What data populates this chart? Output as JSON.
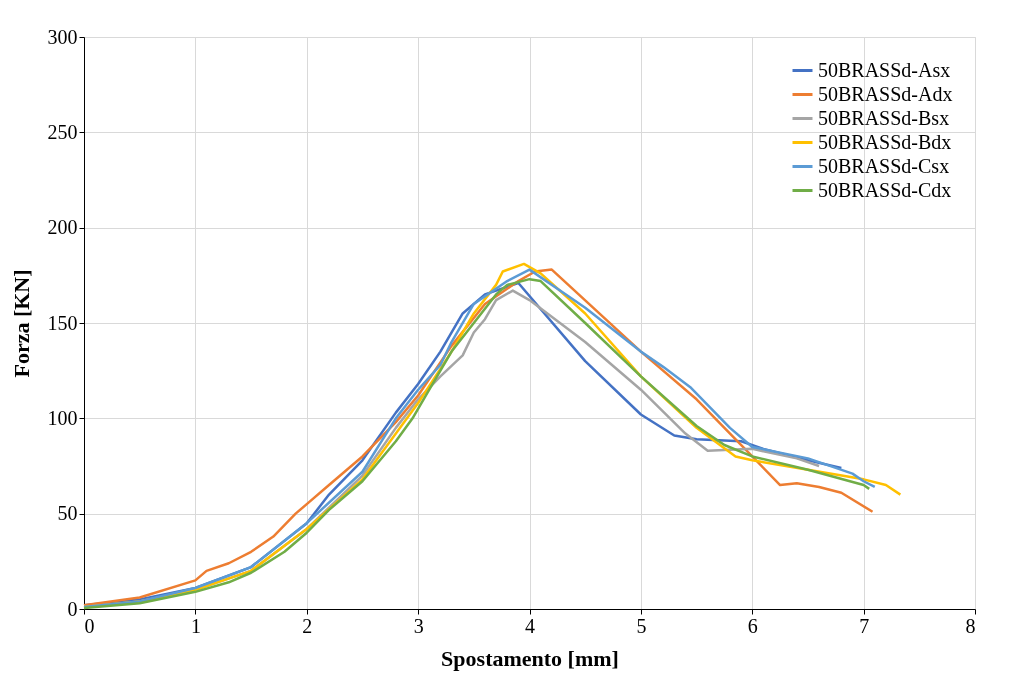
{
  "chart_data": {
    "type": "line",
    "xlabel": "Spostamento  [mm]",
    "ylabel": "Forza  [KN]",
    "xlim": [
      0,
      8
    ],
    "xticks": [
      0,
      1,
      2,
      3,
      4,
      5,
      6,
      7,
      8
    ],
    "ylim": [
      0,
      300
    ],
    "yticks": [
      0,
      50,
      100,
      150,
      200,
      250,
      300
    ],
    "grid": true,
    "legend": "top right",
    "marker": "none",
    "line_style": "solid",
    "series": [
      {
        "name": "50BRASSd-Asx",
        "color": "#4472c4",
        "x": [
          0,
          0.5,
          1,
          1.5,
          2,
          2.2,
          2.5,
          2.8,
          3,
          3.2,
          3.4,
          3.6,
          3.9,
          4.5,
          5,
          5.3,
          5.5,
          5.9,
          6.1,
          6.5,
          6.8
        ],
        "values": [
          2,
          5,
          11,
          22,
          45,
          60,
          78,
          103,
          118,
          135,
          155,
          165,
          171,
          130,
          102,
          91,
          89,
          88,
          84,
          78,
          74
        ]
      },
      {
        "name": "50BRASSd-Adx",
        "color": "#ed7d31",
        "x": [
          0,
          0.5,
          1,
          1.1,
          1.3,
          1.5,
          1.7,
          1.9,
          2,
          2.2,
          2.5,
          2.8,
          3,
          3.3,
          3.6,
          3.9,
          4.05,
          4.2,
          5,
          5.5,
          6,
          6.25,
          6.4,
          6.6,
          6.8,
          7.08
        ],
        "values": [
          2,
          6,
          15,
          20,
          24,
          30,
          38,
          50,
          55,
          65,
          80,
          98,
          112,
          138,
          160,
          172,
          177,
          178,
          135,
          110,
          80,
          65,
          66,
          64,
          61,
          51
        ]
      },
      {
        "name": "50BRASSd-Bsx",
        "color": "#a5a5a5",
        "x": [
          0,
          0.5,
          1,
          1.5,
          2,
          2.5,
          2.8,
          3,
          3.2,
          3.4,
          3.5,
          3.6,
          3.7,
          3.85,
          4,
          4.5,
          5,
          5.4,
          5.6,
          6,
          6.4,
          6.6
        ],
        "values": [
          1,
          4,
          10,
          20,
          42,
          70,
          95,
          110,
          122,
          133,
          145,
          152,
          162,
          167,
          162,
          140,
          115,
          92,
          83,
          84,
          79,
          75
        ]
      },
      {
        "name": "50BRASSd-Bdx",
        "color": "#ffc000",
        "x": [
          0,
          0.5,
          1,
          1.5,
          2,
          2.5,
          2.8,
          3,
          3.3,
          3.5,
          3.7,
          3.76,
          3.95,
          4.1,
          4.5,
          5,
          5.5,
          5.85,
          6,
          6.5,
          7,
          7.2,
          7.33
        ],
        "values": [
          1,
          4,
          10,
          20,
          42,
          68,
          92,
          108,
          135,
          155,
          170,
          177,
          181,
          176,
          155,
          122,
          95,
          80,
          78,
          73,
          68,
          65,
          60
        ]
      },
      {
        "name": "50BRASSd-Csx",
        "color": "#5b9bd5",
        "x": [
          0,
          0.5,
          1,
          1.5,
          2,
          2.5,
          2.8,
          3,
          3.2,
          3.3,
          3.5,
          3.8,
          4,
          4.5,
          5,
          5.2,
          5.45,
          5.8,
          6,
          6.5,
          6.9,
          7,
          7.1
        ],
        "values": [
          1,
          4,
          11,
          22,
          45,
          72,
          100,
          115,
          128,
          140,
          160,
          172,
          178,
          158,
          135,
          127,
          116,
          95,
          85,
          79,
          71,
          67,
          64
        ]
      },
      {
        "name": "50BRASSd-Cdx",
        "color": "#70ad47",
        "x": [
          0,
          0.5,
          1,
          1.3,
          1.5,
          1.8,
          2,
          2.2,
          2.5,
          2.8,
          2.95,
          3.1,
          3.3,
          3.5,
          3.7,
          3.8,
          4,
          4.1,
          4.5,
          5,
          5.5,
          5.75,
          6,
          6.5,
          7,
          7.05
        ],
        "values": [
          0.5,
          3,
          9,
          14,
          19,
          30,
          40,
          52,
          67,
          88,
          100,
          115,
          135,
          150,
          165,
          170,
          173,
          172,
          150,
          122,
          96,
          86,
          80,
          73,
          65,
          63
        ]
      }
    ]
  }
}
